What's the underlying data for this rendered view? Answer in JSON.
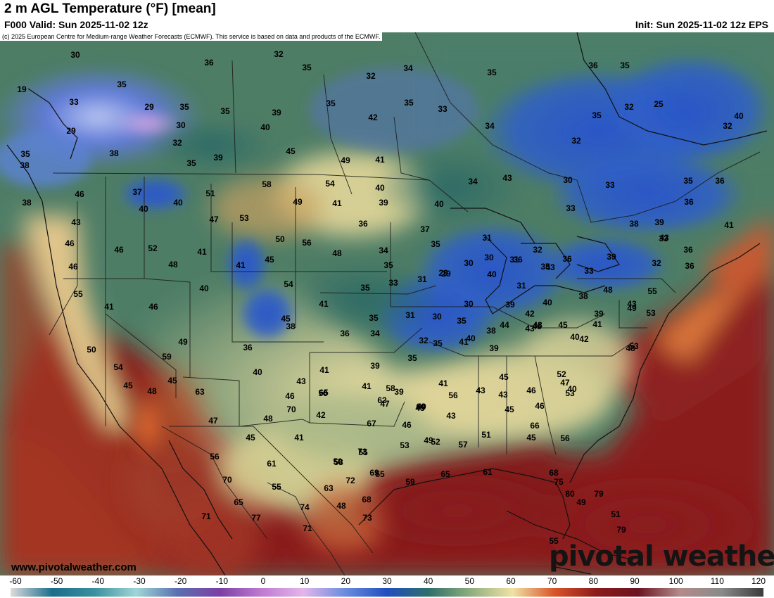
{
  "header": {
    "title": "2 m AGL Temperature (°F) [mean]",
    "valid": "F000 Valid: Sun 2025-11-02 12z",
    "init": "Init: Sun 2025-11-02 12z EPS"
  },
  "copyright": "(c) 2025 European Centre for Medium-range Weather Forecasts (ECMWF). This service is based on data and products of the ECMWF.",
  "footer": {
    "site": "www.pivotalweather.com",
    "brand": "pivotal weather"
  },
  "legend": {
    "unit": "°F",
    "ticks": [
      -60,
      -50,
      -40,
      -30,
      -20,
      -10,
      0,
      10,
      20,
      30,
      40,
      50,
      60,
      70,
      80,
      90,
      100,
      110,
      120
    ],
    "color_stops": [
      {
        "value": -60,
        "color": "#dcdcdc"
      },
      {
        "value": -50,
        "color": "#1c6d8c"
      },
      {
        "value": -40,
        "color": "#3a8f9f"
      },
      {
        "value": -30,
        "color": "#9fd6d6"
      },
      {
        "value": -20,
        "color": "#5a6fb0"
      },
      {
        "value": -10,
        "color": "#7c3fa6"
      },
      {
        "value": 0,
        "color": "#c07ad0"
      },
      {
        "value": 10,
        "color": "#e3b6ea"
      },
      {
        "value": 20,
        "color": "#6a8cde"
      },
      {
        "value": 30,
        "color": "#1f4ebf"
      },
      {
        "value": 40,
        "color": "#2f6f6a"
      },
      {
        "value": 50,
        "color": "#8fae7e"
      },
      {
        "value": 60,
        "color": "#f0e2a6"
      },
      {
        "value": 70,
        "color": "#d9552a"
      },
      {
        "value": 80,
        "color": "#8c1a1a"
      },
      {
        "value": 90,
        "color": "#6a1420"
      },
      {
        "value": 100,
        "color": "#b48a8a"
      },
      {
        "value": 110,
        "color": "#8a8a8a"
      },
      {
        "value": 120,
        "color": "#3a3a3a"
      }
    ]
  },
  "station_values": [
    {
      "value": "30"
    },
    {
      "value": "32"
    },
    {
      "value": "35"
    },
    {
      "value": "34"
    },
    {
      "value": "35"
    },
    {
      "value": "36"
    },
    {
      "value": "35"
    },
    {
      "value": "19"
    },
    {
      "value": "35"
    },
    {
      "value": "36"
    },
    {
      "value": "32"
    },
    {
      "value": "33"
    },
    {
      "value": "29"
    },
    {
      "value": "35"
    },
    {
      "value": "35"
    },
    {
      "value": "39"
    },
    {
      "value": "35"
    },
    {
      "value": "35"
    },
    {
      "value": "33"
    },
    {
      "value": "32"
    },
    {
      "value": "25"
    },
    {
      "value": "29"
    },
    {
      "value": "30"
    },
    {
      "value": "40"
    },
    {
      "value": "42"
    },
    {
      "value": "34"
    },
    {
      "value": "35"
    },
    {
      "value": "40"
    },
    {
      "value": "32"
    },
    {
      "value": "38"
    },
    {
      "value": "45"
    },
    {
      "value": "32"
    },
    {
      "value": "32"
    },
    {
      "value": "35"
    },
    {
      "value": "39"
    },
    {
      "value": "49"
    },
    {
      "value": "41"
    },
    {
      "value": "43"
    },
    {
      "value": "30"
    },
    {
      "value": "33"
    },
    {
      "value": "35"
    },
    {
      "value": "36"
    },
    {
      "value": "40"
    },
    {
      "value": "38"
    },
    {
      "value": "46"
    },
    {
      "value": "37"
    },
    {
      "value": "51"
    },
    {
      "value": "58"
    },
    {
      "value": "54"
    },
    {
      "value": "40"
    },
    {
      "value": "34"
    },
    {
      "value": "40"
    },
    {
      "value": "49"
    },
    {
      "value": "41"
    },
    {
      "value": "39"
    },
    {
      "value": "38"
    },
    {
      "value": "35"
    },
    {
      "value": "40"
    },
    {
      "value": "47"
    },
    {
      "value": "53"
    },
    {
      "value": "36"
    },
    {
      "value": "37"
    },
    {
      "value": "33"
    },
    {
      "value": "38"
    },
    {
      "value": "39"
    },
    {
      "value": "36"
    },
    {
      "value": "41"
    },
    {
      "value": "43"
    },
    {
      "value": "46"
    },
    {
      "value": "52"
    },
    {
      "value": "41"
    },
    {
      "value": "50"
    },
    {
      "value": "56"
    },
    {
      "value": "48"
    },
    {
      "value": "34"
    },
    {
      "value": "35"
    },
    {
      "value": "31"
    },
    {
      "value": "32"
    },
    {
      "value": "30"
    },
    {
      "value": "36"
    },
    {
      "value": "43"
    },
    {
      "value": "36"
    },
    {
      "value": "46"
    },
    {
      "value": "46"
    },
    {
      "value": "48"
    },
    {
      "value": "41"
    },
    {
      "value": "45"
    },
    {
      "value": "35"
    },
    {
      "value": "29"
    },
    {
      "value": "30"
    },
    {
      "value": "31"
    },
    {
      "value": "35"
    },
    {
      "value": "33"
    },
    {
      "value": "39"
    },
    {
      "value": "33"
    },
    {
      "value": "55"
    },
    {
      "value": "46"
    },
    {
      "value": "54"
    },
    {
      "value": "35"
    },
    {
      "value": "33"
    },
    {
      "value": "31"
    },
    {
      "value": "29"
    },
    {
      "value": "40"
    },
    {
      "value": "31"
    },
    {
      "value": "43"
    },
    {
      "value": "36"
    },
    {
      "value": "32"
    },
    {
      "value": "36"
    },
    {
      "value": "41"
    },
    {
      "value": "40"
    },
    {
      "value": "45"
    },
    {
      "value": "41"
    },
    {
      "value": "30"
    },
    {
      "value": "39"
    },
    {
      "value": "40"
    },
    {
      "value": "38"
    },
    {
      "value": "48"
    },
    {
      "value": "49"
    },
    {
      "value": "53"
    },
    {
      "value": "38"
    },
    {
      "value": "36"
    },
    {
      "value": "35"
    },
    {
      "value": "31"
    },
    {
      "value": "30"
    },
    {
      "value": "35"
    },
    {
      "value": "39"
    },
    {
      "value": "42"
    },
    {
      "value": "43"
    },
    {
      "value": "45"
    },
    {
      "value": "41"
    },
    {
      "value": "43"
    },
    {
      "value": "53"
    },
    {
      "value": "55"
    },
    {
      "value": "49"
    },
    {
      "value": "34"
    },
    {
      "value": "32"
    },
    {
      "value": "40"
    },
    {
      "value": "38"
    },
    {
      "value": "42"
    },
    {
      "value": "48"
    },
    {
      "value": "54"
    },
    {
      "value": "59"
    },
    {
      "value": "36"
    },
    {
      "value": "35"
    },
    {
      "value": "39"
    },
    {
      "value": "44"
    },
    {
      "value": "48"
    },
    {
      "value": "43"
    },
    {
      "value": "39"
    },
    {
      "value": "50"
    },
    {
      "value": "46"
    },
    {
      "value": "40"
    },
    {
      "value": "41"
    },
    {
      "value": "35"
    },
    {
      "value": "41"
    },
    {
      "value": "43"
    },
    {
      "value": "45"
    },
    {
      "value": "46"
    },
    {
      "value": "40"
    },
    {
      "value": "46"
    },
    {
      "value": "58"
    },
    {
      "value": "70"
    },
    {
      "value": "65"
    },
    {
      "value": "41"
    },
    {
      "value": "39"
    },
    {
      "value": "41"
    },
    {
      "value": "47"
    },
    {
      "value": "45"
    },
    {
      "value": "48"
    },
    {
      "value": "45"
    },
    {
      "value": "40"
    },
    {
      "value": "56"
    },
    {
      "value": "62"
    },
    {
      "value": "60"
    },
    {
      "value": "56"
    },
    {
      "value": "43"
    },
    {
      "value": "45"
    },
    {
      "value": "46"
    },
    {
      "value": "45"
    },
    {
      "value": "43"
    },
    {
      "value": "53"
    },
    {
      "value": "52"
    },
    {
      "value": "49"
    },
    {
      "value": "42"
    },
    {
      "value": "46"
    },
    {
      "value": "47"
    },
    {
      "value": "63"
    },
    {
      "value": "45"
    },
    {
      "value": "41"
    },
    {
      "value": "53"
    },
    {
      "value": "49"
    },
    {
      "value": "57"
    },
    {
      "value": "51"
    },
    {
      "value": "45"
    },
    {
      "value": "56"
    },
    {
      "value": "66"
    },
    {
      "value": "48"
    },
    {
      "value": "52"
    },
    {
      "value": "50"
    },
    {
      "value": "55"
    },
    {
      "value": "67"
    },
    {
      "value": "47"
    },
    {
      "value": "56"
    },
    {
      "value": "61"
    },
    {
      "value": "58"
    },
    {
      "value": "73"
    },
    {
      "value": "69"
    },
    {
      "value": "70"
    },
    {
      "value": "55"
    },
    {
      "value": "63"
    },
    {
      "value": "72"
    },
    {
      "value": "55"
    },
    {
      "value": "59"
    },
    {
      "value": "65"
    },
    {
      "value": "61"
    },
    {
      "value": "68"
    },
    {
      "value": "75"
    },
    {
      "value": "65"
    },
    {
      "value": "74"
    },
    {
      "value": "48"
    },
    {
      "value": "68"
    },
    {
      "value": "80"
    },
    {
      "value": "73"
    },
    {
      "value": "79"
    },
    {
      "value": "71"
    },
    {
      "value": "77"
    },
    {
      "value": "49"
    },
    {
      "value": "51"
    },
    {
      "value": "71"
    },
    {
      "value": "79"
    },
    {
      "value": "55"
    }
  ]
}
